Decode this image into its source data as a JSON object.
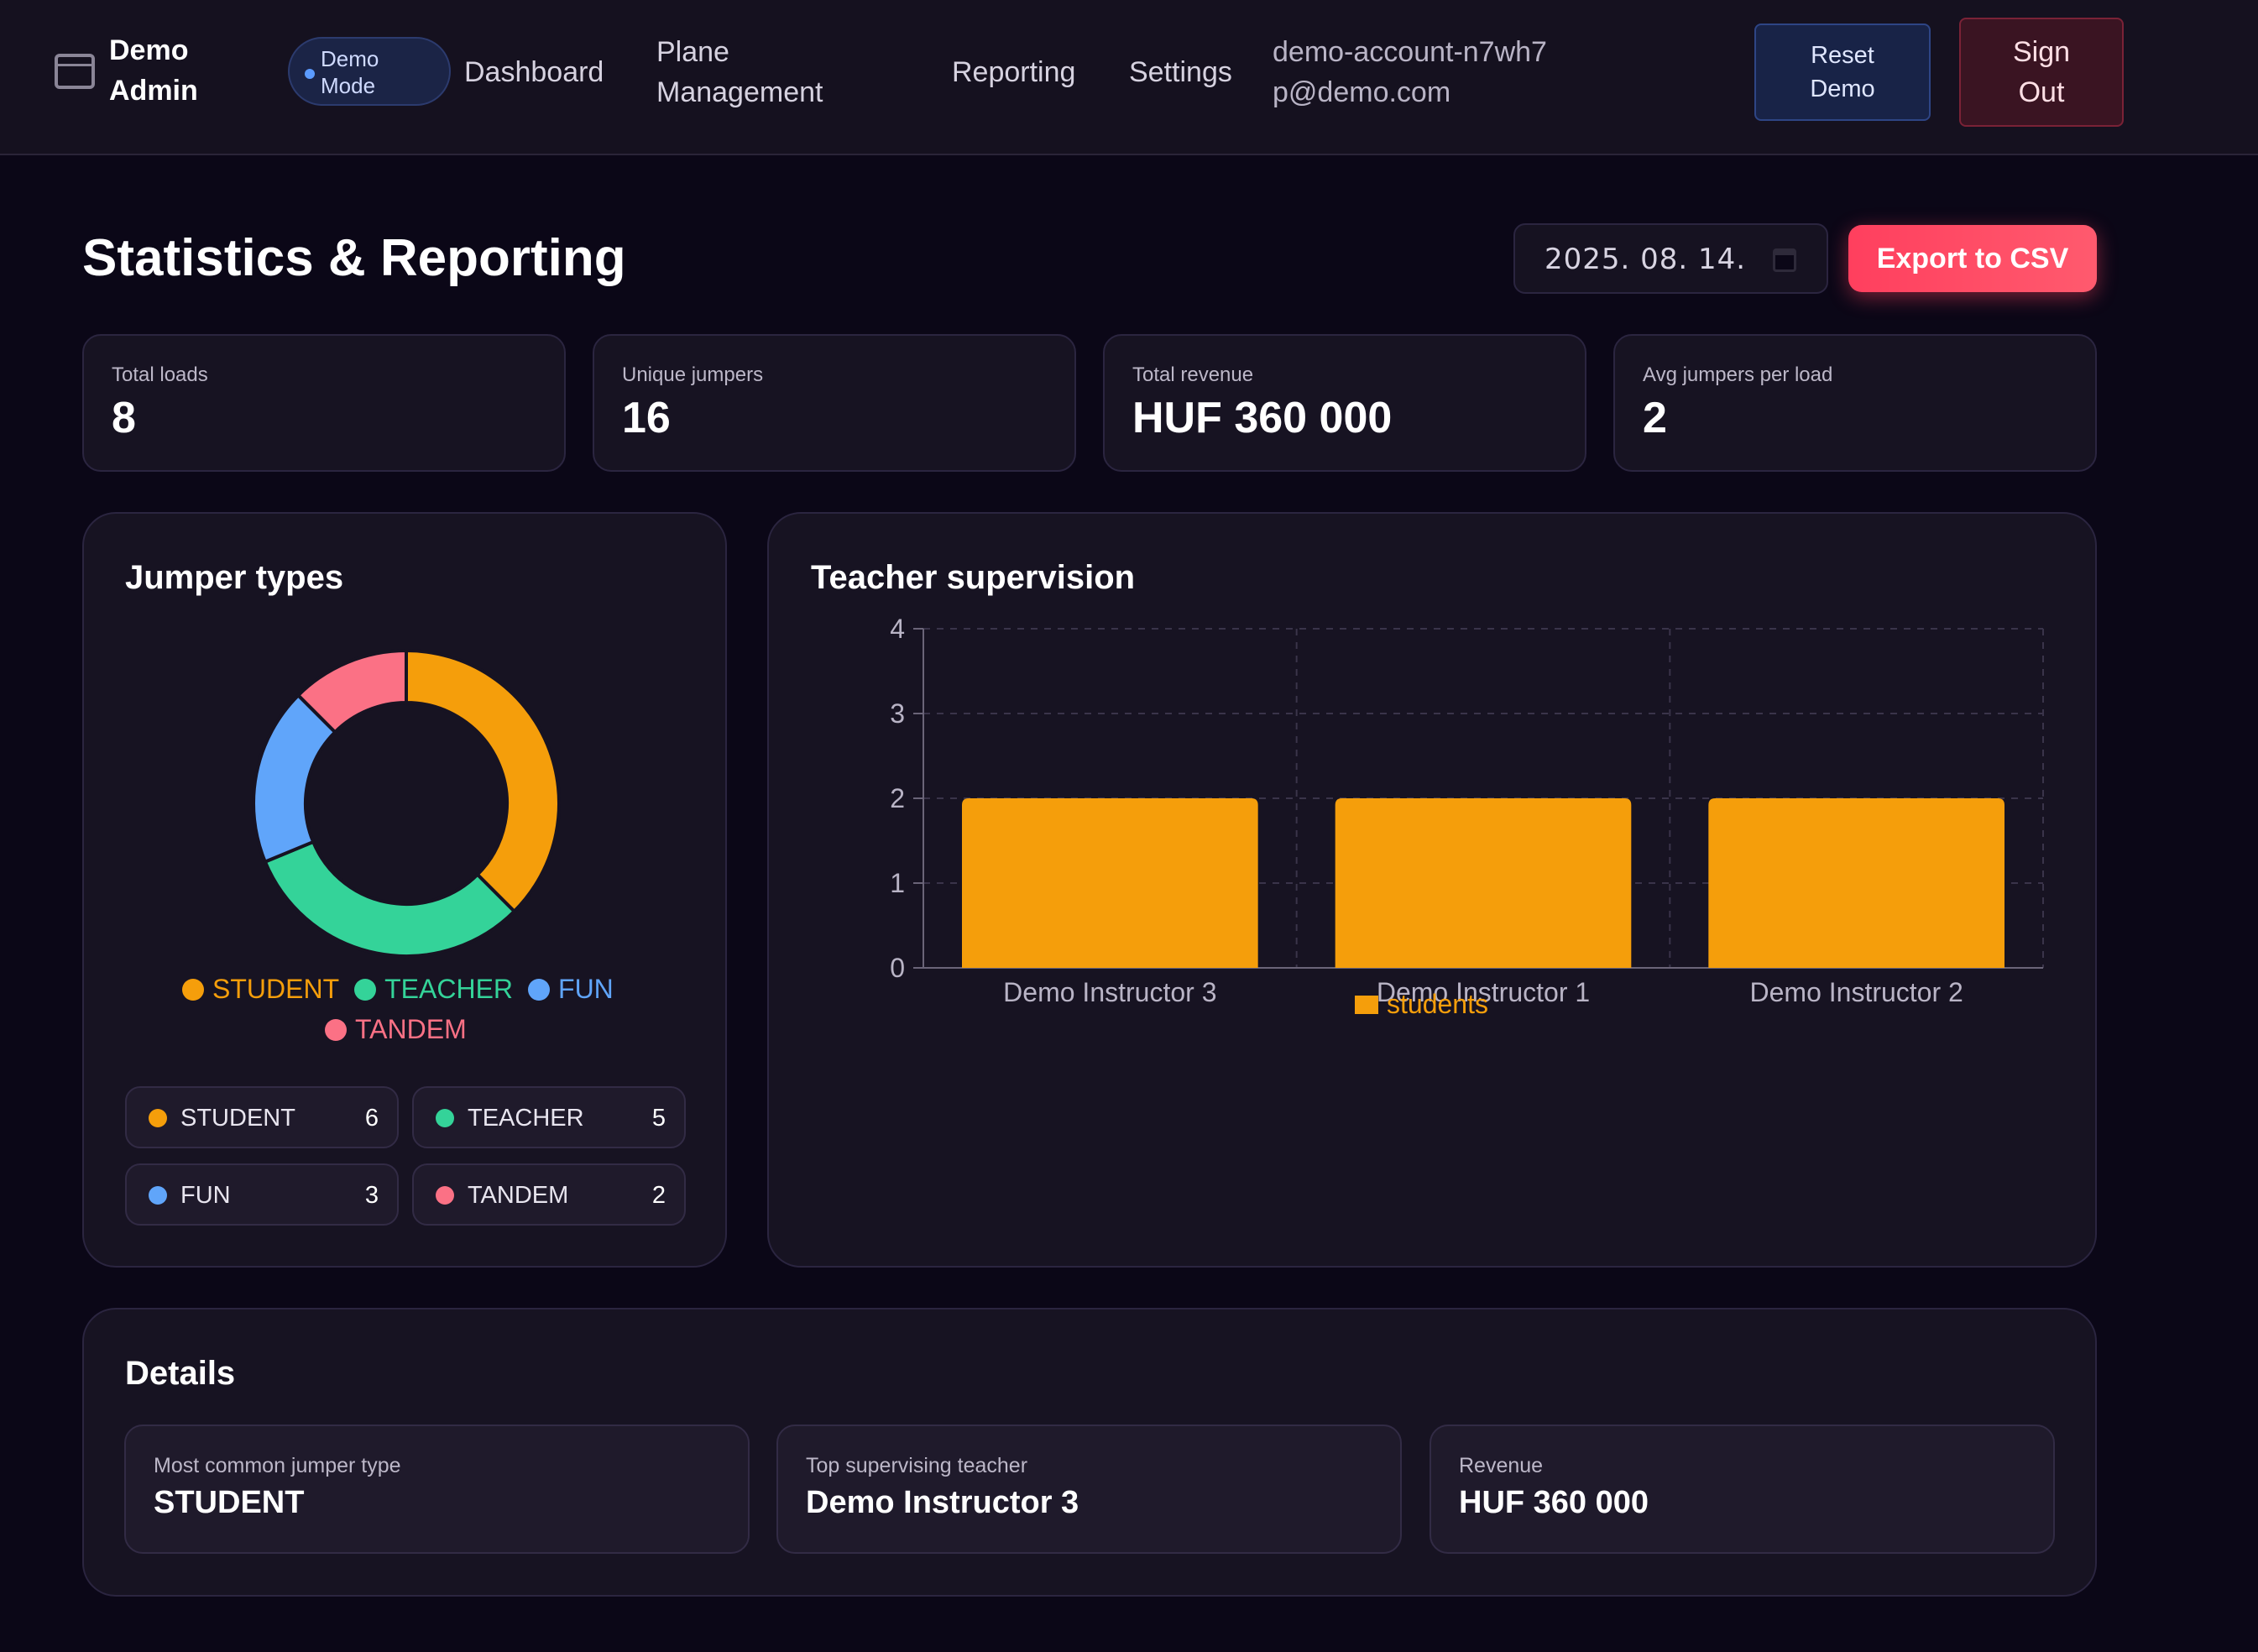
{
  "nav": {
    "brand": "Demo Admin",
    "demo_badge": "Demo Mode",
    "links": [
      "Dashboard",
      "Plane Management",
      "Reporting",
      "Settings"
    ],
    "account_email": "demo-account-n7wh7p@demo.com",
    "reset_label": "Reset Demo",
    "signout_label": "Sign Out"
  },
  "header": {
    "title": "Statistics & Reporting",
    "date_value": "2025. 08. 14.",
    "export_label": "Export to CSV"
  },
  "stats": [
    {
      "label": "Total loads",
      "value": "8"
    },
    {
      "label": "Unique jumpers",
      "value": "16"
    },
    {
      "label": "Total revenue",
      "value": "HUF 360 000"
    },
    {
      "label": "Avg jumpers per load",
      "value": "2"
    }
  ],
  "jumper_types": {
    "title": "Jumper types",
    "chips": [
      {
        "name": "STUDENT",
        "count": "6"
      },
      {
        "name": "TEACHER",
        "count": "5"
      },
      {
        "name": "FUN",
        "count": "3"
      },
      {
        "name": "TANDEM",
        "count": "2"
      }
    ]
  },
  "teacher_supervision": {
    "title": "Teacher supervision"
  },
  "details": {
    "title": "Details",
    "items": [
      {
        "label": "Most common jumper type",
        "value": "STUDENT"
      },
      {
        "label": "Top supervising teacher",
        "value": "Demo Instructor 3"
      },
      {
        "label": "Revenue",
        "value": "HUF 360 000"
      }
    ]
  },
  "colors": {
    "student": "#f59e0b",
    "teacher": "#34d399",
    "fun": "#60a5fa",
    "tandem": "#fb7185",
    "accent": "#ff4560"
  },
  "chart_data": [
    {
      "type": "pie",
      "categories": [
        "STUDENT",
        "TEACHER",
        "FUN",
        "TANDEM"
      ],
      "values": [
        6,
        5,
        3,
        2
      ],
      "legend": "bottom"
    },
    {
      "type": "bar",
      "categories": [
        "Demo Instructor 3",
        "Demo Instructor 1",
        "Demo Instructor 2"
      ],
      "series": [
        {
          "name": "students",
          "values": [
            2,
            2,
            2
          ]
        }
      ],
      "ylim": [
        0,
        4
      ],
      "yticks": [
        0,
        1,
        2,
        3,
        4
      ],
      "grid": true,
      "legend": "bottom"
    }
  ]
}
